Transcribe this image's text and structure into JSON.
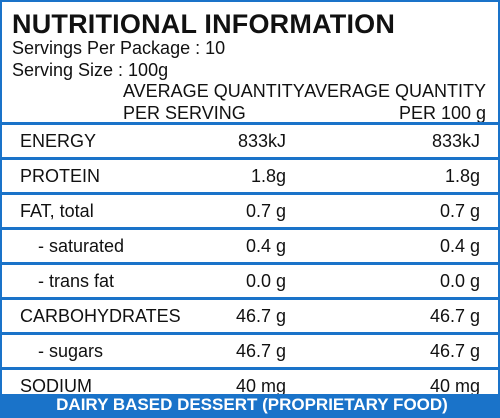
{
  "title": "NUTRITIONAL INFORMATION",
  "servings_per_package": "Servings Per Package : 10",
  "serving_size": "Serving Size : 100g",
  "columns": {
    "per_serving_line1": "AVERAGE QUANTITY",
    "per_serving_line2": "PER SERVING",
    "per_100g_line1": "AVERAGE QUANTITY",
    "per_100g_line2": "PER 100 g"
  },
  "rows": [
    {
      "name": "ENERGY",
      "per_serving": "833kJ",
      "per_100g": "833kJ"
    },
    {
      "name": "PROTEIN",
      "per_serving": "1.8g",
      "per_100g": "1.8g"
    },
    {
      "name": "FAT, total",
      "per_serving": "0.7 g",
      "per_100g": "0.7 g"
    },
    {
      "name": "- saturated",
      "per_serving": "0.4 g",
      "per_100g": "0.4 g"
    },
    {
      "name": "- trans fat",
      "per_serving": "0.0 g",
      "per_100g": "0.0 g"
    },
    {
      "name": "CARBOHYDRATES",
      "per_serving": "46.7 g",
      "per_100g": "46.7 g"
    },
    {
      "name": "- sugars",
      "per_serving": "46.7 g",
      "per_100g": "46.7 g"
    },
    {
      "name": "SODIUM",
      "per_serving": "40 mg",
      "per_100g": "40 mg"
    }
  ],
  "footer": "DAIRY BASED DESSERT (PROPRIETARY FOOD)",
  "colors": {
    "accent": "#1a73c9",
    "text": "#111111",
    "background": "#ffffff"
  }
}
